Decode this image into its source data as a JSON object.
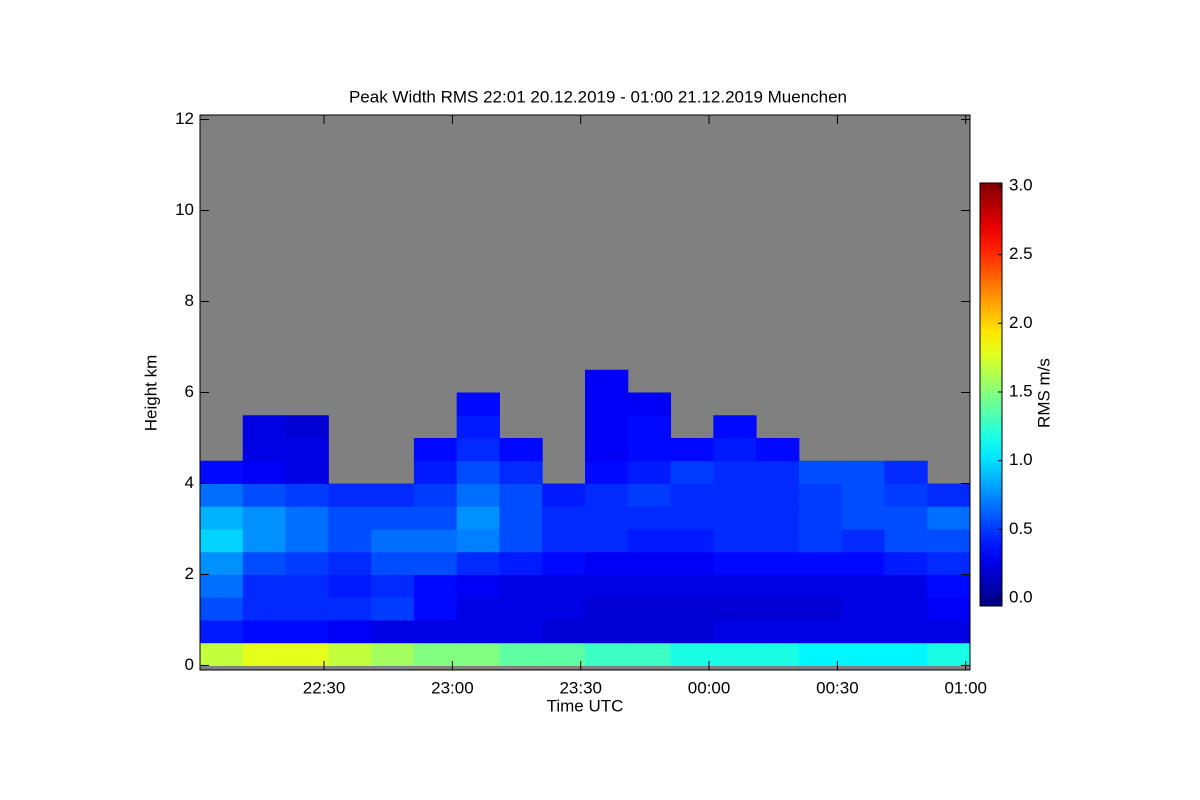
{
  "chart_data": {
    "type": "heatmap",
    "title": "Peak Width RMS   22:01 20.12.2019 - 01:00 21.12.2019 Muenchen",
    "x_label": "Time UTC",
    "y_label": "Height km",
    "colorbar_label": "RMS m/s",
    "x": [
      6,
      16,
      26,
      36,
      46,
      56,
      66,
      76,
      86,
      96,
      106,
      116,
      126,
      136,
      146,
      156,
      166,
      176
    ],
    "y": [
      0.25,
      0.75,
      1.25,
      1.75,
      2.25,
      2.75,
      3.25,
      3.75,
      4.25,
      4.75,
      5.25,
      5.75,
      6.25,
      6.75
    ],
    "z": [
      [
        1.7,
        1.8,
        1.8,
        1.7,
        1.6,
        1.5,
        1.5,
        1.4,
        1.4,
        1.3,
        1.3,
        1.2,
        1.2,
        1.2,
        1.1,
        1.1,
        1.1,
        1.2
      ],
      [
        0.45,
        0.4,
        0.4,
        0.35,
        0.3,
        0.3,
        0.3,
        0.3,
        0.25,
        0.25,
        0.25,
        0.25,
        0.3,
        0.3,
        0.3,
        0.3,
        0.3,
        0.3
      ],
      [
        0.6,
        0.5,
        0.5,
        0.5,
        0.55,
        0.4,
        0.3,
        0.3,
        0.3,
        0.25,
        0.25,
        0.25,
        0.25,
        0.25,
        0.25,
        0.3,
        0.3,
        0.35
      ],
      [
        0.7,
        0.5,
        0.5,
        0.45,
        0.5,
        0.4,
        0.35,
        0.3,
        0.3,
        0.3,
        0.3,
        0.3,
        0.3,
        0.3,
        0.3,
        0.3,
        0.3,
        0.4
      ],
      [
        0.8,
        0.6,
        0.55,
        0.5,
        0.6,
        0.6,
        0.5,
        0.45,
        0.4,
        0.35,
        0.35,
        0.35,
        0.4,
        0.4,
        0.4,
        0.4,
        0.45,
        0.5
      ],
      [
        1.0,
        0.8,
        0.7,
        0.6,
        0.7,
        0.7,
        0.75,
        0.6,
        0.5,
        0.5,
        0.45,
        0.45,
        0.5,
        0.5,
        0.55,
        0.5,
        0.6,
        0.6
      ],
      [
        0.9,
        0.8,
        0.7,
        0.6,
        0.6,
        0.6,
        0.8,
        0.6,
        0.5,
        0.5,
        0.5,
        0.5,
        0.5,
        0.5,
        0.55,
        0.6,
        0.6,
        0.7
      ],
      [
        0.7,
        0.6,
        0.55,
        0.5,
        0.5,
        0.55,
        0.7,
        0.6,
        0.45,
        0.5,
        0.55,
        0.5,
        0.5,
        0.5,
        0.55,
        0.6,
        0.55,
        0.5
      ],
      [
        0.4,
        0.35,
        0.3,
        null,
        null,
        0.45,
        0.6,
        0.5,
        null,
        0.4,
        0.45,
        0.55,
        0.5,
        0.5,
        0.6,
        0.6,
        0.5,
        null
      ],
      [
        null,
        0.3,
        0.3,
        null,
        null,
        0.4,
        0.5,
        0.4,
        null,
        0.35,
        0.4,
        0.4,
        0.45,
        0.4,
        null,
        null,
        null,
        null
      ],
      [
        null,
        0.3,
        0.25,
        null,
        null,
        null,
        0.45,
        null,
        null,
        0.35,
        0.4,
        null,
        0.4,
        null,
        null,
        null,
        null,
        null
      ],
      [
        null,
        null,
        null,
        null,
        null,
        null,
        0.4,
        null,
        null,
        0.35,
        0.35,
        null,
        null,
        null,
        null,
        null,
        null,
        null
      ],
      [
        null,
        null,
        null,
        null,
        null,
        null,
        null,
        null,
        null,
        0.35,
        null,
        null,
        null,
        null,
        null,
        null,
        null,
        null
      ],
      [
        null,
        null,
        null,
        null,
        null,
        null,
        null,
        null,
        null,
        null,
        null,
        null,
        null,
        null,
        null,
        null,
        null,
        null
      ]
    ],
    "xlim": [
      1,
      181
    ],
    "ylim": [
      -0.1,
      12.1
    ],
    "xticks": [
      {
        "value": 30,
        "label": "22:30"
      },
      {
        "value": 60,
        "label": "23:00"
      },
      {
        "value": 90,
        "label": "23:30"
      },
      {
        "value": 120,
        "label": "00:00"
      },
      {
        "value": 150,
        "label": "00:30"
      },
      {
        "value": 180,
        "label": "01:00"
      }
    ],
    "yticks": [
      0,
      2,
      4,
      6,
      8,
      10,
      12
    ],
    "clim": [
      0,
      3
    ],
    "cticks": [
      {
        "value": 0,
        "label": "0.0"
      },
      0.5,
      {
        "value": 1,
        "label": "1.0"
      },
      1.5,
      {
        "value": 2,
        "label": "2.0"
      },
      2.5,
      {
        "value": 3,
        "label": "3.0"
      }
    ],
    "colormap": "jet",
    "missing_color": "#808080"
  }
}
